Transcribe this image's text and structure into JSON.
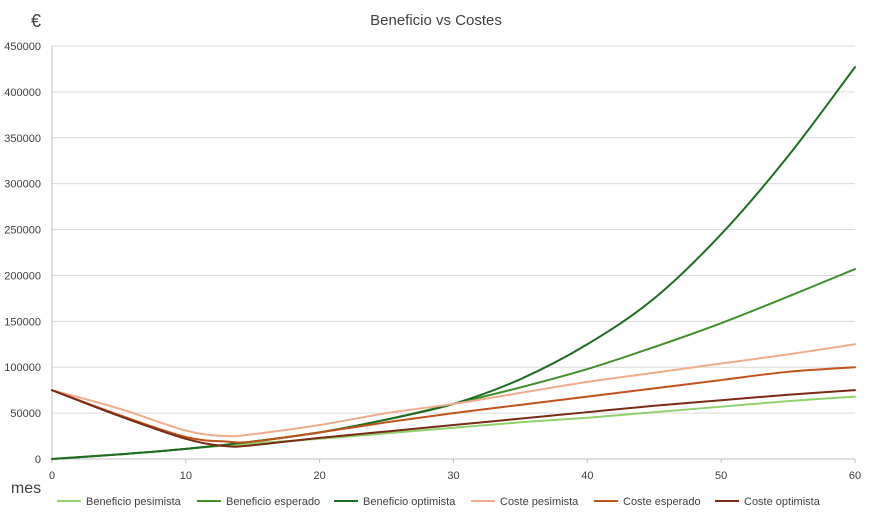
{
  "chart_data": {
    "type": "line",
    "title": "Beneficio vs Costes",
    "ylabel": "€",
    "xlabel": "mes",
    "xlim": [
      0,
      60
    ],
    "ylim": [
      0,
      450000
    ],
    "xticks": [
      0,
      10,
      20,
      30,
      40,
      50,
      60
    ],
    "yticks": [
      0,
      50000,
      100000,
      150000,
      200000,
      250000,
      300000,
      350000,
      400000,
      450000
    ],
    "grid": "horizontal",
    "legend_position": "bottom",
    "series": [
      {
        "name": "Beneficio pesimista",
        "color": "#8fd16a",
        "x": [
          0,
          5,
          10,
          15,
          20,
          25,
          30,
          35,
          40,
          45,
          50,
          55,
          60
        ],
        "y": [
          0,
          5000,
          11000,
          17000,
          22000,
          28000,
          34000,
          40000,
          45000,
          51000,
          57000,
          63000,
          68000
        ]
      },
      {
        "name": "Beneficio esperado",
        "color": "#3f8f2a",
        "x": [
          0,
          5,
          10,
          15,
          20,
          25,
          30,
          35,
          40,
          45,
          50,
          55,
          60
        ],
        "y": [
          0,
          5000,
          11000,
          19000,
          29000,
          43000,
          60000,
          78000,
          98000,
          122000,
          148000,
          177000,
          207000
        ]
      },
      {
        "name": "Beneficio optimista",
        "color": "#1e6b22",
        "x": [
          0,
          5,
          10,
          15,
          20,
          25,
          30,
          35,
          40,
          45,
          50,
          55,
          60
        ],
        "y": [
          0,
          5000,
          11000,
          19000,
          29000,
          43000,
          60000,
          87000,
          125000,
          175000,
          245000,
          330000,
          427000
        ]
      },
      {
        "name": "Coste pesimista",
        "color": "#eeac8a",
        "x": [
          0,
          5,
          10,
          13,
          15,
          20,
          25,
          30,
          35,
          40,
          45,
          50,
          55,
          60
        ],
        "y": [
          75000,
          55000,
          31000,
          25000,
          27000,
          37000,
          50000,
          60000,
          72000,
          84000,
          94000,
          104000,
          114000,
          125000
        ]
      },
      {
        "name": "Coste esperado",
        "color": "#c0521a",
        "x": [
          0,
          5,
          10,
          13,
          15,
          20,
          25,
          30,
          35,
          40,
          45,
          50,
          55,
          60
        ],
        "y": [
          75000,
          48000,
          24000,
          19000,
          19000,
          29000,
          40000,
          50000,
          59000,
          68000,
          77000,
          86000,
          95000,
          100000
        ]
      },
      {
        "name": "Coste optimista",
        "color": "#7a2a15",
        "x": [
          0,
          5,
          10,
          13,
          15,
          20,
          25,
          30,
          35,
          40,
          45,
          50,
          55,
          60
        ],
        "y": [
          75000,
          47000,
          22000,
          14000,
          15000,
          23000,
          30000,
          37000,
          44000,
          51000,
          58000,
          64000,
          70000,
          75000
        ]
      }
    ]
  }
}
